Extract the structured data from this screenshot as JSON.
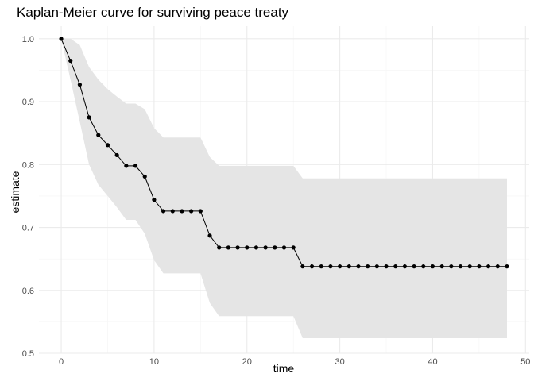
{
  "chart_data": {
    "type": "line",
    "title": "Kaplan-Meier curve for surviving peace treaty",
    "xlabel": "time",
    "ylabel": "estimate",
    "xlim": [
      -2.4,
      50.4
    ],
    "ylim": [
      0.5,
      1.02
    ],
    "x_ticks": [
      0,
      10,
      20,
      30,
      40,
      50
    ],
    "y_ticks": [
      0.5,
      0.6,
      0.7,
      0.8,
      0.9,
      1.0
    ],
    "y_tick_labels": [
      "0.5",
      "0.6",
      "0.7",
      "0.8",
      "0.9",
      "1.0"
    ],
    "grid": true,
    "series": [
      {
        "x": [
          0,
          1,
          2,
          3,
          4,
          5,
          6,
          7,
          8,
          9,
          10,
          11,
          12,
          13,
          14,
          15,
          16,
          17,
          18,
          19,
          20,
          21,
          22,
          23,
          24,
          25,
          26,
          27,
          28,
          29,
          30,
          31,
          32,
          33,
          34,
          35,
          36,
          37,
          38,
          39,
          40,
          41,
          42,
          43,
          44,
          45,
          46,
          47,
          48
        ],
        "estimate": [
          1.0,
          0.965,
          0.927,
          0.875,
          0.847,
          0.831,
          0.815,
          0.798,
          0.798,
          0.781,
          0.744,
          0.726,
          0.726,
          0.726,
          0.726,
          0.726,
          0.687,
          0.668,
          0.668,
          0.668,
          0.668,
          0.668,
          0.668,
          0.668,
          0.668,
          0.668,
          0.638,
          0.638,
          0.638,
          0.638,
          0.638,
          0.638,
          0.638,
          0.638,
          0.638,
          0.638,
          0.638,
          0.638,
          0.638,
          0.638,
          0.638,
          0.638,
          0.638,
          0.638,
          0.638,
          0.638,
          0.638,
          0.638,
          0.638
        ],
        "upper": [
          1.0,
          1.0,
          0.99,
          0.955,
          0.935,
          0.92,
          0.908,
          0.897,
          0.897,
          0.888,
          0.858,
          0.843,
          0.843,
          0.843,
          0.843,
          0.843,
          0.812,
          0.798,
          0.798,
          0.798,
          0.798,
          0.798,
          0.798,
          0.798,
          0.798,
          0.798,
          0.778,
          0.778,
          0.778,
          0.778,
          0.778,
          0.778,
          0.778,
          0.778,
          0.778,
          0.778,
          0.778,
          0.778,
          0.778,
          0.778,
          0.778,
          0.778,
          0.778,
          0.778,
          0.778,
          0.778,
          0.778,
          0.778,
          0.778
        ],
        "lower": [
          1.0,
          0.935,
          0.868,
          0.8,
          0.768,
          0.75,
          0.732,
          0.712,
          0.712,
          0.69,
          0.648,
          0.627,
          0.627,
          0.627,
          0.627,
          0.627,
          0.58,
          0.559,
          0.559,
          0.559,
          0.559,
          0.559,
          0.559,
          0.559,
          0.559,
          0.559,
          0.524,
          0.524,
          0.524,
          0.524,
          0.524,
          0.524,
          0.524,
          0.524,
          0.524,
          0.524,
          0.524,
          0.524,
          0.524,
          0.524,
          0.524,
          0.524,
          0.524,
          0.524,
          0.524,
          0.524,
          0.524,
          0.524,
          0.524
        ]
      }
    ],
    "colors": {
      "line": "#000000",
      "points": "#000000",
      "ribbon": "#e5e5e5",
      "grid_major": "#ebebeb",
      "grid_minor": "#f5f5f5"
    }
  }
}
